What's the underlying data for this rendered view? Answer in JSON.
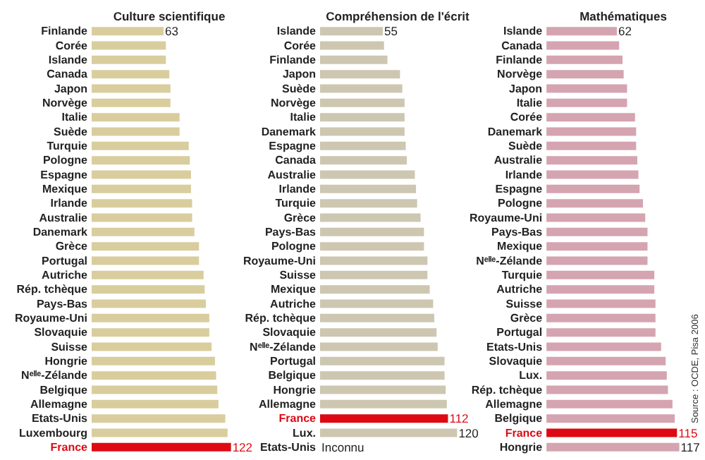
{
  "chart_data": [
    {
      "type": "bar",
      "orientation": "horizontal",
      "title": "Culture scientifique",
      "tick_labels": "y",
      "categories": [
        "Finlande",
        "Corée",
        "Islande",
        "Canada",
        "Japon",
        "Norvège",
        "Italie",
        "Suède",
        "Turquie",
        "Pologne",
        "Espagne",
        "Mexique",
        "Irlande",
        "Australie",
        "Danemark",
        "Grèce",
        "Portugal",
        "Autriche",
        "Rép. tchèque",
        "Pays-Bas",
        "Royaume-Uni",
        "Slovaquie",
        "Suisse",
        "Hongrie",
        "Nᵉˡˡᵉ-Zélande",
        "Belgique",
        "Allemagne",
        "Etats-Unis",
        "Luxembourg",
        "France"
      ],
      "values": [
        63,
        65,
        65,
        68,
        69,
        69,
        77,
        77,
        85,
        86,
        87,
        87,
        88,
        88,
        90,
        94,
        94,
        98,
        99,
        100,
        103,
        103,
        105,
        108,
        109,
        110,
        111,
        117,
        119,
        122
      ],
      "color": "#d9cd9e",
      "colors": [
        "#d9cd9e",
        "#d9cd9e",
        "#d9cd9e",
        "#d9cd9e",
        "#d9cd9e",
        "#d9cd9e",
        "#d9cd9e",
        "#d9cd9e",
        "#d9cd9e",
        "#d9cd9e",
        "#d9cd9e",
        "#d9cd9e",
        "#d9cd9e",
        "#d9cd9e",
        "#d9cd9e",
        "#d9cd9e",
        "#d9cd9e",
        "#d9cd9e",
        "#d9cd9e",
        "#d9cd9e",
        "#d9cd9e",
        "#d9cd9e",
        "#d9cd9e",
        "#d9cd9e",
        "#d9cd9e",
        "#d9cd9e",
        "#d9cd9e",
        "#d9cd9e",
        "#d9cd9e",
        "#dd0a14"
      ],
      "value_labels": [
        "63",
        null,
        null,
        null,
        null,
        null,
        null,
        null,
        null,
        null,
        null,
        null,
        null,
        null,
        null,
        null,
        null,
        null,
        null,
        null,
        null,
        null,
        null,
        null,
        null,
        null,
        null,
        null,
        null,
        "122"
      ]
    },
    {
      "type": "bar",
      "orientation": "horizontal",
      "title": "Compréhension de l'écrit",
      "tick_labels": "y",
      "categories": [
        "Islande",
        "Corée",
        "Finlande",
        "Japon",
        "Suède",
        "Norvège",
        "Italie",
        "Danemark",
        "Espagne",
        "Canada",
        "Australie",
        "Irlande",
        "Turquie",
        "Grèce",
        "Pays-Bas",
        "Pologne",
        "Royaume-Uni",
        "Suisse",
        "Mexique",
        "Autriche",
        "Rép. tchèque",
        "Slovaquie",
        "Nᵉˡˡᵉ-Zélande",
        "Portugal",
        "Belgique",
        "Hongrie",
        "Allemagne",
        "France",
        "Lux.",
        "Etats-Unis"
      ],
      "values": [
        55,
        56,
        59,
        70,
        72,
        74,
        74,
        74,
        75,
        76,
        83,
        84,
        85,
        88,
        91,
        91,
        94,
        94,
        96,
        99,
        100,
        102,
        103,
        109,
        109,
        110,
        111,
        112,
        120,
        null
      ],
      "color": "#cdc7b1",
      "colors": [
        "#cdc7b1",
        "#cdc7b1",
        "#cdc7b1",
        "#cdc7b1",
        "#cdc7b1",
        "#cdc7b1",
        "#cdc7b1",
        "#cdc7b1",
        "#cdc7b1",
        "#cdc7b1",
        "#cdc7b1",
        "#cdc7b1",
        "#cdc7b1",
        "#cdc7b1",
        "#cdc7b1",
        "#cdc7b1",
        "#cdc7b1",
        "#cdc7b1",
        "#cdc7b1",
        "#cdc7b1",
        "#cdc7b1",
        "#cdc7b1",
        "#cdc7b1",
        "#cdc7b1",
        "#cdc7b1",
        "#cdc7b1",
        "#cdc7b1",
        "#dd0a14",
        "#cdc7b1",
        "#cdc7b1"
      ],
      "value_labels": [
        "55",
        null,
        null,
        null,
        null,
        null,
        null,
        null,
        null,
        null,
        null,
        null,
        null,
        null,
        null,
        null,
        null,
        null,
        null,
        null,
        null,
        null,
        null,
        null,
        null,
        null,
        null,
        "112",
        "120",
        "Inconnu"
      ]
    },
    {
      "type": "bar",
      "orientation": "horizontal",
      "title": "Mathématiques",
      "tick_labels": "y",
      "categories": [
        "Islande",
        "Canada",
        "Finlande",
        "Norvège",
        "Japon",
        "Italie",
        "Corée",
        "Danemark",
        "Suède",
        "Australie",
        "Irlande",
        "Espagne",
        "Pologne",
        "Royaume-Uni",
        "Pays-Bas",
        "Mexique",
        "Nᵉˡˡᵉ-Zélande",
        "Turquie",
        "Autriche",
        "Suisse",
        "Grèce",
        "Portugal",
        "Etats-Unis",
        "Slovaquie",
        "Lux.",
        "Rép. tchèque",
        "Allemagne",
        "Belgique",
        "France",
        "Hongrie"
      ],
      "values": [
        62,
        64,
        67,
        68,
        71,
        71,
        78,
        79,
        79,
        80,
        81,
        82,
        85,
        87,
        89,
        89,
        89,
        95,
        95,
        96,
        96,
        96,
        101,
        105,
        106,
        107,
        111,
        113,
        115,
        117
      ],
      "color": "#d5a4b1",
      "colors": [
        "#d5a4b1",
        "#d5a4b1",
        "#d5a4b1",
        "#d5a4b1",
        "#d5a4b1",
        "#d5a4b1",
        "#d5a4b1",
        "#d5a4b1",
        "#d5a4b1",
        "#d5a4b1",
        "#d5a4b1",
        "#d5a4b1",
        "#d5a4b1",
        "#d5a4b1",
        "#d5a4b1",
        "#d5a4b1",
        "#d5a4b1",
        "#d5a4b1",
        "#d5a4b1",
        "#d5a4b1",
        "#d5a4b1",
        "#d5a4b1",
        "#d5a4b1",
        "#d5a4b1",
        "#d5a4b1",
        "#d5a4b1",
        "#d5a4b1",
        "#d5a4b1",
        "#dd0a14",
        "#d5a4b1"
      ],
      "value_labels": [
        "62",
        null,
        null,
        null,
        null,
        null,
        null,
        null,
        null,
        null,
        null,
        null,
        null,
        null,
        null,
        null,
        null,
        null,
        null,
        null,
        null,
        null,
        null,
        null,
        null,
        null,
        null,
        null,
        "115",
        "117"
      ],
      "annotations": [
        "Source : OCDE, Pisa 2006"
      ]
    }
  ]
}
